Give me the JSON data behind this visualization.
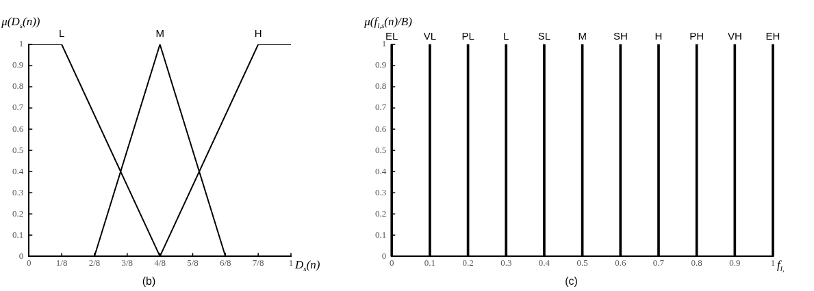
{
  "chart_data": [
    {
      "type": "line",
      "title": "(b)",
      "xlabel": "D$_{s}$(n)",
      "ylabel": "μ(D$_{s}$(n))",
      "series": [
        {
          "name": "L",
          "color": "#000000",
          "x": [
            0,
            0.125,
            0.5,
            1
          ],
          "values": [
            1,
            1,
            0,
            0
          ]
        },
        {
          "name": "M",
          "color": "#000000",
          "x": [
            0,
            0.25,
            0.5,
            0.75,
            1
          ],
          "values": [
            0,
            0,
            1,
            0,
            0
          ]
        },
        {
          "name": "H",
          "color": "#000000",
          "x": [
            0,
            0.5,
            0.875,
            1
          ],
          "values": [
            0,
            0,
            1,
            1
          ]
        }
      ],
      "xlim": [
        0,
        1
      ],
      "xticks": [
        0,
        {
          "value": 0.125,
          "label": "1/8"
        },
        {
          "value": 0.25,
          "label": "2/8"
        },
        {
          "value": 0.375,
          "label": "3/8"
        },
        {
          "value": 0.5,
          "label": "4/8"
        },
        {
          "value": 0.625,
          "label": "5/8"
        },
        {
          "value": 0.75,
          "label": "6/8"
        },
        {
          "value": 0.875,
          "label": "7/8"
        },
        1
      ],
      "ylim": [
        0,
        1
      ],
      "yticks": [
        0,
        0.1,
        0.2,
        0.3,
        0.4,
        0.5,
        0.6,
        0.7,
        0.8,
        0.9,
        1
      ],
      "grid": false,
      "legend": false,
      "marker": "none",
      "line_style": "solid"
    },
    {
      "type": "bar",
      "title": "(c)",
      "xlabel": "f$_{l,}$",
      "ylabel": "μ(f$_{l,s}$(n)/B)",
      "x": [
        0,
        0.1,
        0.2,
        0.3,
        0.4,
        0.5,
        0.6,
        0.7,
        0.8,
        0.9,
        1
      ],
      "values": [
        1,
        1,
        1,
        1,
        1,
        1,
        1,
        1,
        1,
        1,
        1
      ],
      "color": "#000000",
      "annotations": [
        {
          "text": "EL",
          "x": 0,
          "y": 1
        },
        {
          "text": "VL",
          "x": 0.1,
          "y": 1
        },
        {
          "text": "PL",
          "x": 0.2,
          "y": 1
        },
        {
          "text": "L",
          "x": 0.3,
          "y": 1
        },
        {
          "text": "SL",
          "x": 0.4,
          "y": 1
        },
        {
          "text": "M",
          "x": 0.5,
          "y": 1
        },
        {
          "text": "SH",
          "x": 0.6,
          "y": 1
        },
        {
          "text": "H",
          "x": 0.7,
          "y": 1
        },
        {
          "text": "PH",
          "x": 0.8,
          "y": 1
        },
        {
          "text": "VH",
          "x": 0.9,
          "y": 1
        },
        {
          "text": "EH",
          "x": 1,
          "y": 1
        }
      ],
      "xlim": [
        0,
        1
      ],
      "xticks": [
        0,
        0.1,
        0.2,
        0.3,
        0.4,
        0.5,
        0.6,
        0.7,
        0.8,
        0.9,
        1
      ],
      "ylim": [
        0,
        1
      ],
      "yticks": [
        0,
        0.1,
        0.2,
        0.3,
        0.4,
        0.5,
        0.6,
        0.7,
        0.8,
        0.9,
        1
      ],
      "grid": false,
      "legend": false
    }
  ]
}
